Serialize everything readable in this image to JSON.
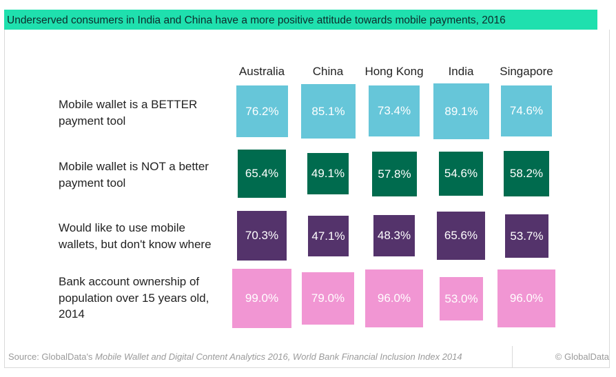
{
  "title": "Underserved consumers in India and China have a more positive attitude towards mobile payments, 2016",
  "colors": {
    "title_bg": "#1fe0ae",
    "rows": [
      "#66c6d9",
      "#006b4e",
      "#54336b",
      "#f196d3"
    ]
  },
  "chart_data": {
    "type": "table",
    "columns": [
      "Australia",
      "China",
      "Hong Kong",
      "India",
      "Singapore"
    ],
    "rows": [
      {
        "label": "Mobile wallet is a BETTER payment tool",
        "values": [
          76.2,
          85.1,
          73.4,
          89.1,
          74.6
        ],
        "labels": [
          "76.2%",
          "85.1%",
          "73.4%",
          "89.1%",
          "74.6%"
        ]
      },
      {
        "label": "Mobile wallet is NOT a better payment tool",
        "values": [
          65.4,
          49.1,
          57.8,
          54.6,
          58.2
        ],
        "labels": [
          "65.4%",
          "49.1%",
          "57.8%",
          "54.6%",
          "58.2%"
        ]
      },
      {
        "label": "Would like to use mobile wallets, but don't know where",
        "values": [
          70.3,
          47.1,
          48.3,
          65.6,
          53.7
        ],
        "labels": [
          "70.3%",
          "47.1%",
          "48.3%",
          "65.6%",
          "53.7%"
        ]
      },
      {
        "label": "Bank account ownership of population over 15 years old, 2014",
        "values": [
          99.0,
          79.0,
          96.0,
          53.0,
          96.0
        ],
        "labels": [
          "99.0%",
          "79.0%",
          "96.0%",
          "53.0%",
          "96.0%"
        ]
      }
    ]
  },
  "row_label_lines": [
    [
      "Mobile wallet is a BETTER",
      "payment tool"
    ],
    [
      "Mobile wallet is NOT a better",
      "payment tool"
    ],
    [
      "Would like to use mobile",
      "wallets, but don't know where"
    ],
    [
      "Bank account ownership of",
      "population over 15 years old,",
      "2014"
    ]
  ],
  "footer": {
    "source_prefix": "Source: GlobalData's ",
    "source_italic": "Mobile Wallet and Digital Content Analytics 2016, World Bank Financial Inclusion Index 2014",
    "brand": "© GlobalData"
  }
}
